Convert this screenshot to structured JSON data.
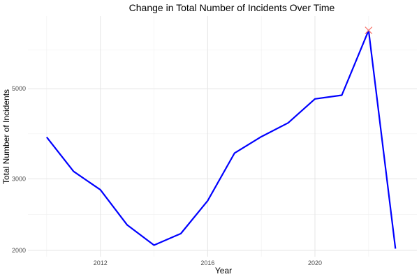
{
  "chart_data": {
    "type": "line",
    "title": "Change in Total Number of Incidents Over Time",
    "xlabel": "Year",
    "ylabel": "Total Number of Incidents",
    "x_scale": "linear",
    "y_scale": "log",
    "xlim": [
      2009.3,
      2023.8
    ],
    "ylim": [
      1930,
      7550
    ],
    "x_ticks": [
      2012,
      2016,
      2020
    ],
    "x_tick_labels": [
      "2012",
      "2016",
      "2020"
    ],
    "y_ticks": [
      2000,
      3000,
      5000
    ],
    "y_tick_labels": [
      "2000",
      "3000",
      "5000"
    ],
    "grid": true,
    "legend": "none",
    "series": [
      {
        "color": "#0000ff",
        "x": [
          2010,
          2011,
          2012,
          2013,
          2014,
          2015,
          2016,
          2017,
          2018,
          2019,
          2020,
          2021,
          2022,
          2023
        ],
        "y": [
          3800,
          3130,
          2820,
          2310,
          2060,
          2200,
          2650,
          3470,
          3810,
          4120,
          4720,
          4820,
          6960,
          2020
        ]
      }
    ],
    "highlight": {
      "x": 2022,
      "y": 6960,
      "marker": "x",
      "color": "#f8766d"
    }
  }
}
